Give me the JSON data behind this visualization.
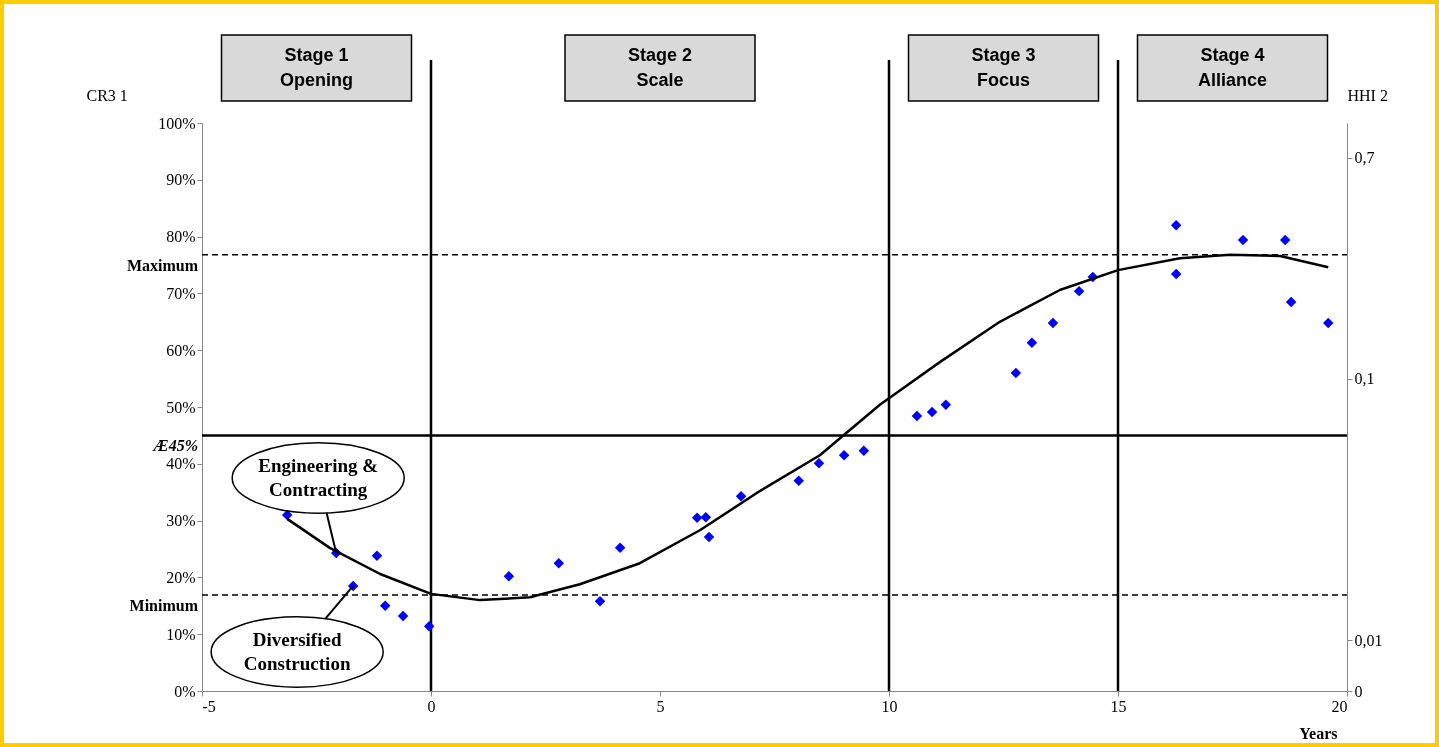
{
  "chart_data": {
    "type": "scatter",
    "ylabel": "CR3 1",
    "y2label": "HHI 2",
    "xlabel": "Years",
    "xlim": [
      -5,
      20
    ],
    "xticks": [
      -5,
      0,
      5,
      10,
      15,
      20
    ],
    "ylim": [
      0,
      100
    ],
    "yticks": [
      {
        "value": 0,
        "label": "0%"
      },
      {
        "value": 10,
        "label": "10%"
      },
      {
        "value": 20,
        "label": "20%"
      },
      {
        "value": 30,
        "label": "30%"
      },
      {
        "value": 40,
        "label": "40%"
      },
      {
        "value": 50,
        "label": "50%"
      },
      {
        "value": 60,
        "label": "60%"
      },
      {
        "value": 70,
        "label": "70%"
      },
      {
        "value": 80,
        "label": "80%"
      },
      {
        "value": 90,
        "label": "90%"
      },
      {
        "value": 100,
        "label": "100%"
      }
    ],
    "log": "y2",
    "y2lim": [
      0.0064,
      0.95
    ],
    "y2ticks": [
      {
        "value": 0.0064,
        "label": "0"
      },
      {
        "value": 0.01,
        "label": "0,01"
      },
      {
        "value": 0.1,
        "label": "0,1"
      },
      {
        "value": 0.7,
        "label": "0,7"
      }
    ],
    "grid": false,
    "legend": false,
    "series": [
      {
        "color": "#0000ff",
        "marker": "diamond",
        "x": [
          -3.14,
          -2.07,
          -1.18,
          -1.7,
          -1.0,
          -0.61,
          -0.04,
          1.7,
          2.79,
          3.69,
          4.13,
          5.81,
          6.0,
          6.07,
          6.77,
          8.03,
          8.47,
          9.02,
          9.45,
          10.61,
          10.94,
          11.24,
          12.77,
          13.12,
          13.58,
          14.15,
          14.45,
          16.27,
          16.27,
          17.73,
          18.65,
          18.78,
          19.59
        ],
        "values": [
          31.0,
          24.3,
          23.8,
          18.5,
          15.0,
          13.2,
          11.4,
          20.2,
          22.5,
          15.8,
          25.2,
          30.5,
          30.6,
          27.1,
          34.3,
          37.0,
          40.1,
          41.5,
          42.3,
          48.4,
          49.1,
          50.4,
          56.0,
          61.3,
          64.8,
          70.4,
          72.9,
          82.0,
          73.4,
          79.4,
          79.4,
          68.5,
          64.8
        ]
      },
      {
        "type": "line",
        "color": "#000000",
        "line_style": "solid",
        "x": [
          -3.14,
          -2.21,
          -1.11,
          0,
          1.07,
          2.16,
          3.25,
          4.56,
          5.87,
          7.18,
          8.49,
          9.8,
          11.11,
          12.42,
          13.73,
          15.0,
          16.35,
          17.45,
          18.54,
          19.59
        ],
        "values": [
          30.3,
          25.2,
          20.6,
          17.1,
          16.0,
          16.5,
          18.8,
          22.5,
          28.3,
          35.2,
          41.5,
          50.4,
          57.9,
          65.0,
          70.6,
          74.1,
          76.2,
          76.8,
          76.6,
          74.6
        ]
      }
    ],
    "ref_lines": [
      {
        "axis": "y",
        "value": 76.8,
        "label": "Maximum",
        "line_style": "dashed"
      },
      {
        "axis": "y",
        "value": 16.9,
        "label": "Minimum",
        "line_style": "dashed"
      },
      {
        "axis": "y",
        "value": 45,
        "label": "Æ45%",
        "line_style": "solid"
      },
      {
        "axis": "x",
        "value": 0,
        "line_style": "solid"
      },
      {
        "axis": "x",
        "value": 10,
        "line_style": "solid"
      },
      {
        "axis": "x",
        "value": 15,
        "line_style": "solid"
      }
    ],
    "annotations": [
      "Stage 1\nOpening",
      "Stage 2\nScale",
      "Stage 3\nFocus",
      "Stage 4\nAlliance",
      {
        "text": "Engineering & Contracting",
        "x": -2.07,
        "y": 24.3
      },
      {
        "text": "Diversified Construction",
        "x": -1.7,
        "y": 18.5
      }
    ]
  }
}
